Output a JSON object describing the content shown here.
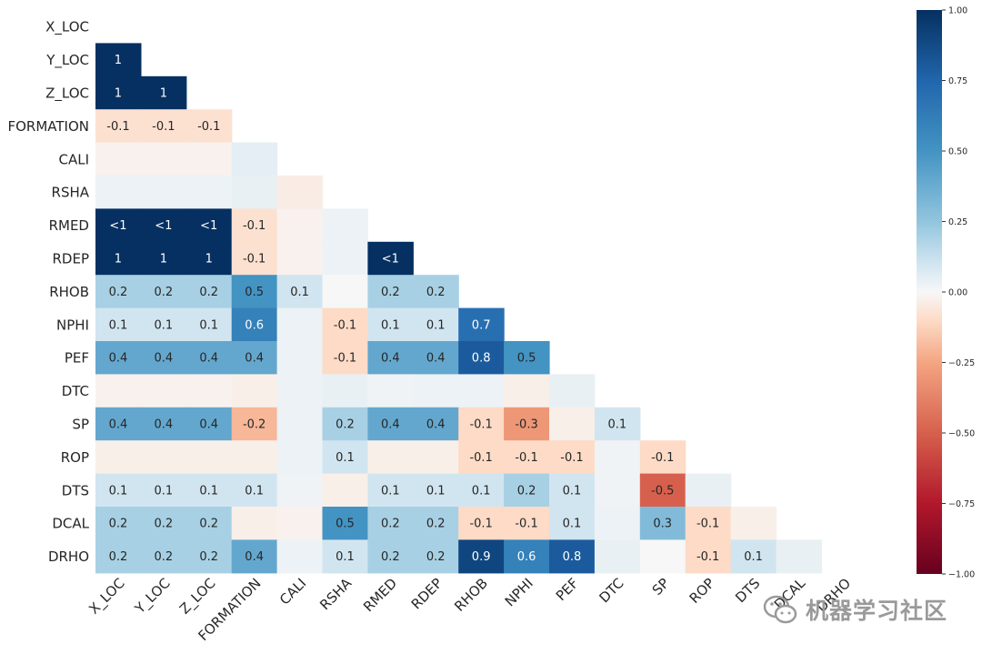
{
  "chart_data": {
    "type": "heatmap",
    "title": "",
    "xlabel": "",
    "ylabel": "",
    "row_labels": [
      "X_LOC",
      "Y_LOC",
      "Z_LOC",
      "FORMATION",
      "CALI",
      "RSHA",
      "RMED",
      "RDEP",
      "RHOB",
      "NPHI",
      "PEF",
      "DTC",
      "SP",
      "ROP",
      "DTS",
      "DCAL",
      "DRHO"
    ],
    "col_labels": [
      "X_LOC",
      "Y_LOC",
      "Z_LOC",
      "FORMATION",
      "CALI",
      "RSHA",
      "RMED",
      "RDEP",
      "RHOB",
      "NPHI",
      "PEF",
      "DTC",
      "SP",
      "ROP",
      "DTS",
      "DCAL",
      "DRHO"
    ],
    "mask": "upper-triangle-including-diagonal",
    "values": [
      [],
      [
        1.0
      ],
      [
        1.0,
        1.0
      ],
      [
        -0.08,
        -0.08,
        -0.08
      ],
      [
        -0.02,
        -0.02,
        -0.02,
        0.05
      ],
      [
        0.03,
        0.03,
        0.03,
        0.04,
        -0.04
      ],
      [
        0.999,
        0.999,
        0.999,
        -0.08,
        -0.02,
        0.03
      ],
      [
        1.0,
        1.0,
        1.0,
        -0.08,
        -0.02,
        0.03,
        0.999
      ],
      [
        0.2,
        0.2,
        0.2,
        0.5,
        0.1,
        0.0,
        0.2,
        0.2
      ],
      [
        0.1,
        0.1,
        0.1,
        0.6,
        0.03,
        -0.1,
        0.1,
        0.1,
        0.7
      ],
      [
        0.4,
        0.4,
        0.4,
        0.4,
        0.03,
        -0.1,
        0.4,
        0.4,
        0.8,
        0.5
      ],
      [
        -0.02,
        -0.02,
        -0.02,
        -0.03,
        0.03,
        0.04,
        0.02,
        0.03,
        0.03,
        -0.03,
        0.04
      ],
      [
        0.4,
        0.4,
        0.4,
        -0.2,
        0.03,
        0.2,
        0.4,
        0.4,
        -0.1,
        -0.3,
        -0.03,
        0.1
      ],
      [
        -0.03,
        -0.03,
        -0.03,
        -0.03,
        0.03,
        0.1,
        -0.03,
        -0.03,
        -0.1,
        -0.1,
        -0.1,
        0.02,
        -0.1
      ],
      [
        0.1,
        0.1,
        0.1,
        0.1,
        0.02,
        -0.03,
        0.1,
        0.1,
        0.1,
        0.2,
        0.1,
        0.02,
        -0.5,
        0.04
      ],
      [
        0.2,
        0.2,
        0.2,
        -0.03,
        -0.02,
        0.5,
        0.2,
        0.2,
        -0.1,
        -0.1,
        0.1,
        0.03,
        0.3,
        -0.1,
        -0.03
      ],
      [
        0.2,
        0.2,
        0.2,
        0.4,
        0.03,
        0.1,
        0.2,
        0.2,
        0.9,
        0.6,
        0.8,
        0.04,
        0.0,
        -0.1,
        0.1,
        0.04
      ]
    ],
    "cell_labels": [
      [],
      [
        "1"
      ],
      [
        "1",
        "1"
      ],
      [
        "-0.1",
        "-0.1",
        "-0.1"
      ],
      [
        "",
        "",
        "",
        ""
      ],
      [
        "",
        "",
        "",
        "",
        ""
      ],
      [
        "<1",
        "<1",
        "<1",
        "-0.1",
        "",
        ""
      ],
      [
        "1",
        "1",
        "1",
        "-0.1",
        "",
        "",
        "<1"
      ],
      [
        "0.2",
        "0.2",
        "0.2",
        "0.5",
        "0.1",
        "",
        "0.2",
        "0.2"
      ],
      [
        "0.1",
        "0.1",
        "0.1",
        "0.6",
        "",
        "-0.1",
        "0.1",
        "0.1",
        "0.7"
      ],
      [
        "0.4",
        "0.4",
        "0.4",
        "0.4",
        "",
        "-0.1",
        "0.4",
        "0.4",
        "0.8",
        "0.5"
      ],
      [
        "",
        "",
        "",
        "",
        "",
        "",
        "",
        "",
        "",
        "",
        ""
      ],
      [
        "0.4",
        "0.4",
        "0.4",
        "-0.2",
        "",
        "0.2",
        "0.4",
        "0.4",
        "-0.1",
        "-0.3",
        "",
        "0.1"
      ],
      [
        "",
        "",
        "",
        "",
        "",
        "0.1",
        "",
        "",
        "-0.1",
        "-0.1",
        "-0.1",
        "",
        "-0.1"
      ],
      [
        "0.1",
        "0.1",
        "0.1",
        "0.1",
        "",
        "",
        "0.1",
        "0.1",
        "0.1",
        "0.2",
        "0.1",
        "",
        "-0.5",
        ""
      ],
      [
        "0.2",
        "0.2",
        "0.2",
        "",
        "",
        "0.5",
        "0.2",
        "0.2",
        "-0.1",
        "-0.1",
        "0.1",
        "",
        "0.3",
        "-0.1",
        ""
      ],
      [
        "0.2",
        "0.2",
        "0.2",
        "0.4",
        "",
        "0.1",
        "0.2",
        "0.2",
        "0.9",
        "0.6",
        "0.8",
        "",
        "",
        "-0.1",
        "0.1",
        ""
      ]
    ],
    "colorscale": "RdBu",
    "vmin": -1.0,
    "vmax": 1.0,
    "colorbar_ticks": [
      "1.00",
      "0.75",
      "0.50",
      "0.25",
      "0.00",
      "−0.25",
      "−0.50",
      "−0.75",
      "−1.00"
    ],
    "colorbar_tick_values": [
      1.0,
      0.75,
      0.5,
      0.25,
      0.0,
      -0.25,
      -0.5,
      -0.75,
      -1.0
    ],
    "grid": false,
    "legend": "colorbar-right"
  },
  "watermark": {
    "text": "机器学习社区",
    "icon": "wechat-icon"
  }
}
